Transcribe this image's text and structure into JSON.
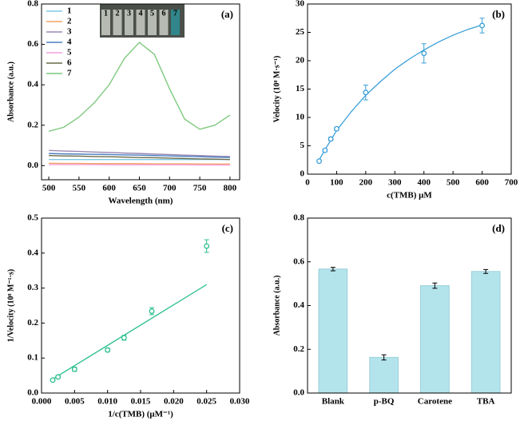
{
  "chart_data": [
    {
      "type": "line",
      "panel_label": "(a)",
      "xlabel": "Wavelength (nm)",
      "ylabel": "Absorbance (a.u.)",
      "inset_labels": [
        "1",
        "2",
        "3",
        "4",
        "5",
        "6",
        "7"
      ],
      "x": [
        500,
        525,
        550,
        575,
        600,
        625,
        650,
        675,
        700,
        725,
        750,
        775,
        800
      ],
      "series": [
        {
          "name": "1",
          "color": "#7ec8e3",
          "values": [
            0.03,
            0.03,
            0.03,
            0.03,
            0.03,
            0.03,
            0.03,
            0.03,
            0.03,
            0.03,
            0.03,
            0.03,
            0.03
          ]
        },
        {
          "name": "2",
          "color": "#f4a460",
          "values": [
            0.012,
            0.011,
            0.011,
            0.01,
            0.01,
            0.01,
            0.01,
            0.009,
            0.009,
            0.009,
            0.008,
            0.008,
            0.008
          ]
        },
        {
          "name": "3",
          "color": "#9b89b3",
          "values": [
            0.075,
            0.072,
            0.07,
            0.067,
            0.065,
            0.062,
            0.06,
            0.057,
            0.055,
            0.052,
            0.05,
            0.047,
            0.045
          ]
        },
        {
          "name": "4",
          "color": "#4a7fc1",
          "values": [
            0.06,
            0.058,
            0.057,
            0.056,
            0.055,
            0.053,
            0.052,
            0.05,
            0.048,
            0.046,
            0.044,
            0.042,
            0.04
          ]
        },
        {
          "name": "5",
          "color": "#f4a0e0",
          "values": [
            0.005,
            0.005,
            0.005,
            0.005,
            0.004,
            0.004,
            0.004,
            0.004,
            0.004,
            0.004,
            0.003,
            0.003,
            0.003
          ]
        },
        {
          "name": "6",
          "color": "#6b6b4b",
          "values": [
            0.05,
            0.048,
            0.047,
            0.045,
            0.044,
            0.042,
            0.04,
            0.039,
            0.037,
            0.035,
            0.033,
            0.032,
            0.03
          ]
        },
        {
          "name": "7",
          "color": "#7fc97f",
          "values": [
            0.17,
            0.19,
            0.24,
            0.31,
            0.4,
            0.53,
            0.61,
            0.55,
            0.38,
            0.23,
            0.18,
            0.2,
            0.25
          ]
        }
      ],
      "xlim": [
        488,
        816
      ],
      "xticks": [
        500,
        550,
        600,
        650,
        700,
        750,
        800
      ],
      "ylim": [
        -0.07,
        0.8
      ],
      "yticks": [
        {
          "value": 0,
          "label": "0.0"
        },
        {
          "value": 0.2,
          "label": "0.2"
        },
        {
          "value": 0.4,
          "label": "0.4"
        },
        {
          "value": 0.6,
          "label": "0.6"
        },
        {
          "value": 0.8,
          "label": "0.8"
        }
      ],
      "legend": "top-left"
    },
    {
      "type": "scatter",
      "panel_label": "(b)",
      "xlabel": "c(TMB) μM",
      "ylabel": "Velocity (10⁸ M·s⁻¹)",
      "color": "#3a9fd8",
      "points": {
        "x": [
          40,
          60,
          80,
          100,
          200,
          400,
          600
        ],
        "values": [
          2.3,
          4.2,
          6.2,
          8.0,
          14.4,
          21.3,
          26.2
        ],
        "errors": [
          0.2,
          0.2,
          0.3,
          0.3,
          1.3,
          1.7,
          1.3
        ]
      },
      "fit": {
        "x": [
          40,
          60,
          80,
          100,
          150,
          200,
          250,
          300,
          350,
          400,
          450,
          500,
          550,
          600
        ],
        "values": [
          2.5,
          4.3,
          6.0,
          7.7,
          11.0,
          13.9,
          16.3,
          18.5,
          20.3,
          21.9,
          23.3,
          24.5,
          25.5,
          26.3
        ]
      },
      "xlim": [
        0,
        700
      ],
      "xticks": [
        0,
        100,
        200,
        300,
        400,
        500,
        600,
        700
      ],
      "ylim": [
        0,
        30
      ],
      "yticks": [
        0,
        5,
        10,
        15,
        20,
        25,
        30
      ]
    },
    {
      "type": "scatter",
      "panel_label": "(c)",
      "xlabel": "1/c(TMB) (μM⁻¹)",
      "ylabel": "1/Velocity (10⁸ M⁻¹·s)",
      "color": "#2bbf8f",
      "points": {
        "x": [
          0.0017,
          0.0025,
          0.005,
          0.01,
          0.0125,
          0.0167,
          0.025
        ],
        "values": [
          0.037,
          0.046,
          0.068,
          0.123,
          0.158,
          0.234,
          0.42
        ],
        "errors": [
          0.003,
          0.004,
          0.006,
          0.005,
          0.007,
          0.01,
          0.018
        ]
      },
      "fit": {
        "x": [
          0.0017,
          0.025
        ],
        "values": [
          0.04,
          0.31
        ]
      },
      "xlim": [
        0,
        0.03
      ],
      "xticks": [
        {
          "value": 0,
          "label": "0.000"
        },
        {
          "value": 0.005,
          "label": "0.005"
        },
        {
          "value": 0.01,
          "label": "0.010"
        },
        {
          "value": 0.015,
          "label": "0.015"
        },
        {
          "value": 0.02,
          "label": "0.020"
        },
        {
          "value": 0.025,
          "label": "0.025"
        },
        {
          "value": 0.03,
          "label": "0.030"
        }
      ],
      "ylim": [
        0,
        0.5
      ],
      "yticks": [
        {
          "value": 0,
          "label": "0.0"
        },
        {
          "value": 0.1,
          "label": "0.1"
        },
        {
          "value": 0.2,
          "label": "0.2"
        },
        {
          "value": 0.3,
          "label": "0.3"
        },
        {
          "value": 0.4,
          "label": "0.4"
        },
        {
          "value": 0.5,
          "label": "0.5"
        }
      ]
    },
    {
      "type": "bar",
      "panel_label": "(d)",
      "ylabel": "Absorbance (a.u.)",
      "color": "#b3e4ec",
      "categories": [
        "Blank",
        "p-BQ",
        "Carotene",
        "TBA"
      ],
      "values": [
        0.567,
        0.163,
        0.491,
        0.556
      ],
      "errors": [
        0.008,
        0.012,
        0.012,
        0.009
      ],
      "ylim": [
        0,
        0.8
      ],
      "yticks": [
        {
          "value": 0,
          "label": "0.0"
        },
        {
          "value": 0.2,
          "label": "0.2"
        },
        {
          "value": 0.4,
          "label": "0.4"
        },
        {
          "value": 0.6,
          "label": "0.6"
        },
        {
          "value": 0.8,
          "label": "0.8"
        }
      ]
    }
  ]
}
